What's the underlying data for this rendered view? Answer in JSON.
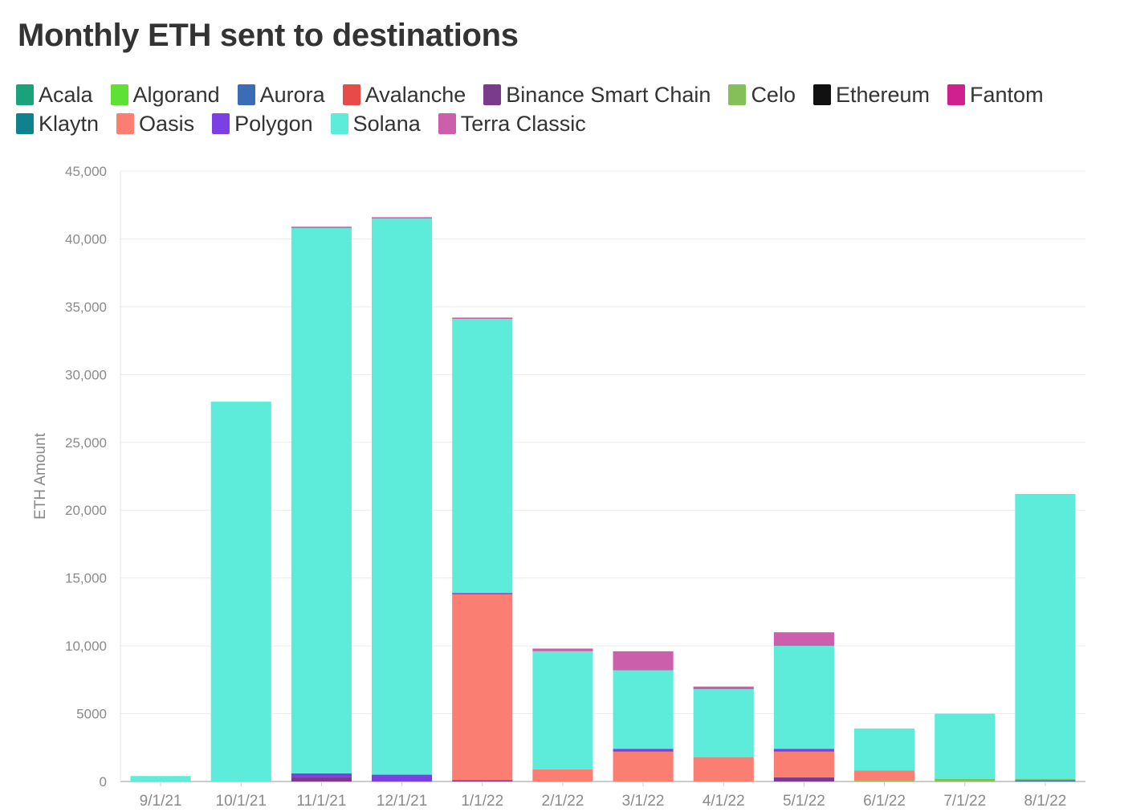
{
  "chart_data": {
    "type": "bar",
    "stacked": true,
    "title": "Monthly ETH sent to destinations",
    "ylabel": "ETH Amount",
    "xlabel": "",
    "ylim": [
      0,
      45000
    ],
    "yticks": [
      0,
      5000,
      10000,
      15000,
      20000,
      25000,
      30000,
      35000,
      40000,
      45000
    ],
    "ytick_labels": [
      "0",
      "5000",
      "10,000",
      "15,000",
      "20,000",
      "25,000",
      "30,000",
      "35,000",
      "40,000",
      "45,000"
    ],
    "grid": true,
    "legend_position": "top",
    "categories": [
      "9/1/21",
      "10/1/21",
      "11/1/21",
      "12/1/21",
      "1/1/22",
      "2/1/22",
      "3/1/22",
      "4/1/22",
      "5/1/22",
      "6/1/22",
      "7/1/22",
      "8/1/22"
    ],
    "series": [
      {
        "name": "Acala",
        "color": "#1aa37a",
        "values": [
          0,
          0,
          0,
          0,
          0,
          0,
          0,
          0,
          0,
          0,
          0,
          0
        ]
      },
      {
        "name": "Algorand",
        "color": "#5ee034",
        "values": [
          0,
          0,
          0,
          0,
          0,
          0,
          0,
          0,
          0,
          0,
          0,
          0
        ]
      },
      {
        "name": "Aurora",
        "color": "#3b6cb5",
        "values": [
          0,
          0,
          0,
          0,
          0,
          0,
          0,
          0,
          0,
          0,
          0,
          100
        ]
      },
      {
        "name": "Avalanche",
        "color": "#e84a4a",
        "values": [
          0,
          0,
          0,
          0,
          0,
          0,
          0,
          0,
          0,
          0,
          0,
          0
        ]
      },
      {
        "name": "Binance Smart Chain",
        "color": "#7b3a8c",
        "values": [
          0,
          0,
          300,
          0,
          100,
          0,
          0,
          0,
          300,
          0,
          0,
          0
        ]
      },
      {
        "name": "Celo",
        "color": "#85bf5a",
        "values": [
          0,
          0,
          0,
          0,
          0,
          0,
          0,
          0,
          0,
          100,
          200,
          100
        ]
      },
      {
        "name": "Ethereum",
        "color": "#111111",
        "values": [
          0,
          0,
          0,
          0,
          0,
          0,
          0,
          0,
          0,
          0,
          0,
          0
        ]
      },
      {
        "name": "Fantom",
        "color": "#d01f8f",
        "values": [
          0,
          0,
          0,
          0,
          0,
          0,
          0,
          0,
          0,
          0,
          0,
          0
        ]
      },
      {
        "name": "Klaytn",
        "color": "#10818f",
        "values": [
          0,
          0,
          0,
          0,
          0,
          0,
          0,
          0,
          0,
          0,
          0,
          0
        ]
      },
      {
        "name": "Oasis",
        "color": "#fa7e72",
        "values": [
          0,
          0,
          0,
          0,
          13700,
          900,
          2200,
          1800,
          1900,
          700,
          0,
          0
        ]
      },
      {
        "name": "Polygon",
        "color": "#7b3fe4",
        "values": [
          0,
          0,
          300,
          500,
          100,
          0,
          200,
          0,
          200,
          0,
          0,
          0
        ]
      },
      {
        "name": "Solana",
        "color": "#5cecd9",
        "values": [
          400,
          28000,
          40200,
          41000,
          20200,
          8700,
          5800,
          5000,
          7600,
          3100,
          4800,
          21000
        ]
      },
      {
        "name": "Terra Classic",
        "color": "#cc5fac",
        "values": [
          0,
          0,
          100,
          100,
          100,
          200,
          1400,
          200,
          1000,
          0,
          0,
          0
        ]
      }
    ]
  }
}
